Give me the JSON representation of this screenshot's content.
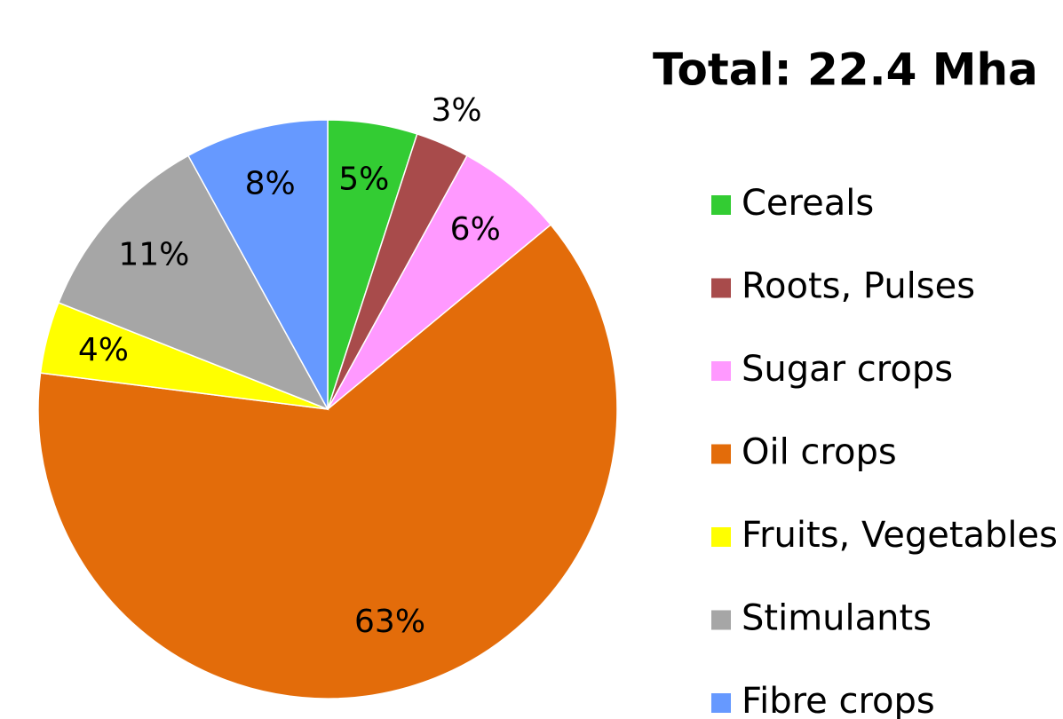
{
  "chart_data": {
    "type": "pie",
    "title": "Total: 22.4 Mha",
    "categories": [
      "Cereals",
      "Roots, Pulses",
      "Sugar crops",
      "Oil crops",
      "Fruits, Vegetables",
      "Stimulants",
      "Fibre crops"
    ],
    "values": [
      5,
      3,
      6,
      63,
      4,
      11,
      8
    ],
    "value_labels": [
      "5%",
      "3%",
      "6%",
      "63%",
      "4%",
      "11%",
      "8%"
    ],
    "colors": [
      "#33cc33",
      "#a84b4b",
      "#ff99ff",
      "#e36c0a",
      "#ffff00",
      "#a6a6a6",
      "#6699ff"
    ],
    "legend": "right"
  }
}
